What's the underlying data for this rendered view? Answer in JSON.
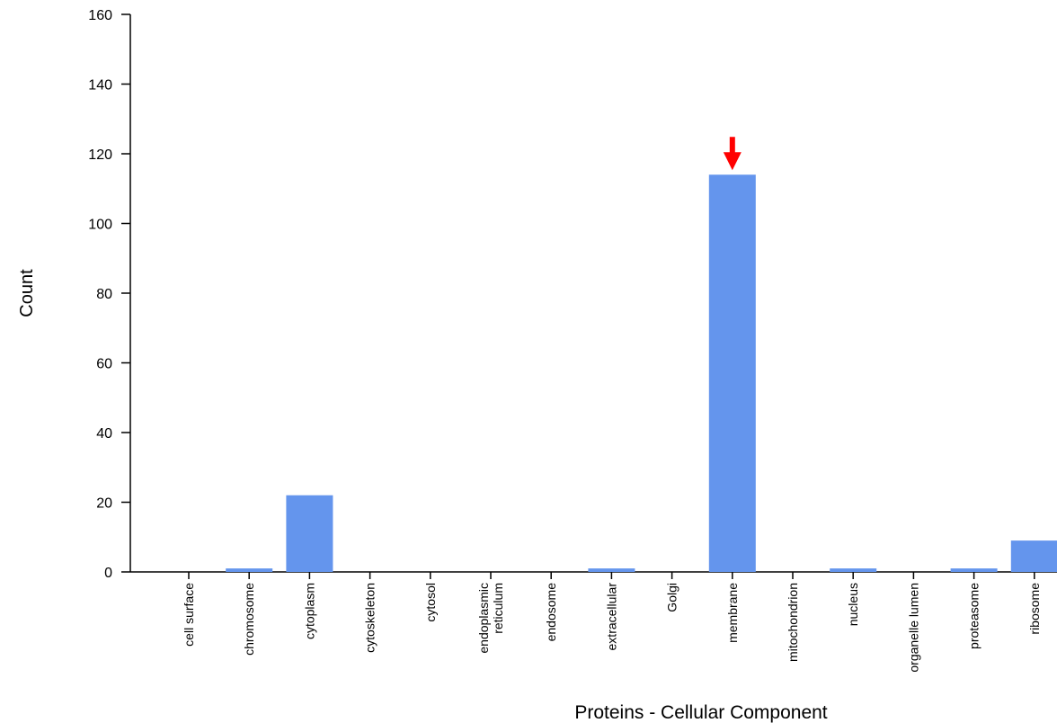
{
  "chart_data": {
    "type": "bar",
    "xlabel": "Proteins - Cellular Component",
    "ylabel": "Count",
    "ylim": [
      0,
      160
    ],
    "yticks": [
      0,
      20,
      40,
      60,
      80,
      100,
      120,
      140,
      160
    ],
    "categories": [
      "cell surface",
      "chromosome",
      "cytoplasm",
      "cytoskeleton",
      "cytosol",
      "endoplasmic reticulum",
      "endosome",
      "extracellular",
      "Golgi",
      "membrane",
      "mitochondrion",
      "nucleus",
      "organelle lumen",
      "proteasome",
      "ribosome"
    ],
    "values": [
      0,
      1,
      22,
      0,
      0,
      0,
      0,
      1,
      0,
      114,
      0,
      1,
      0,
      1,
      9
    ],
    "bar_color": "#6495ed",
    "highlight_arrow": {
      "category": "membrane",
      "color": "#ff0000"
    },
    "grid": false
  }
}
